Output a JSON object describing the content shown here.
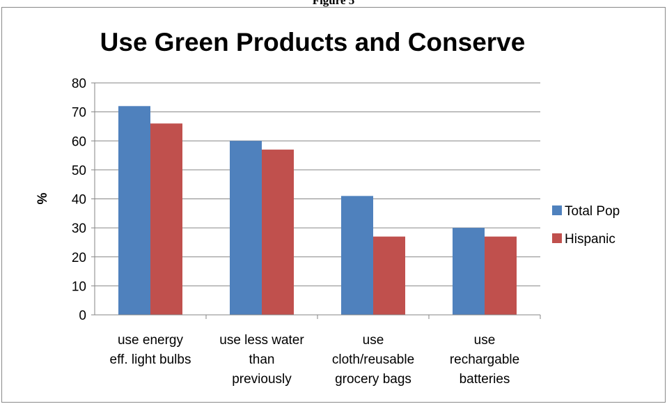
{
  "page": {
    "caption": "Figure 5"
  },
  "chart_data": {
    "type": "bar",
    "title": "Use Green Products and Conserve",
    "xlabel": "",
    "ylabel": "%",
    "ylim": [
      0,
      80
    ],
    "yticks": [
      0,
      10,
      20,
      30,
      40,
      50,
      60,
      70,
      80
    ],
    "grid": true,
    "legend_position": "right",
    "categories": [
      [
        "use energy",
        "eff. light bulbs"
      ],
      [
        "use less water",
        "than",
        "previously"
      ],
      [
        "use",
        "cloth/reusable",
        "grocery bags"
      ],
      [
        "use",
        "rechargable",
        "batteries"
      ]
    ],
    "series": [
      {
        "name": "Total Pop",
        "color": "#4f81bd",
        "values": [
          72,
          60,
          41,
          30
        ]
      },
      {
        "name": "Hispanic",
        "color": "#c0504d",
        "values": [
          66,
          57,
          27,
          27
        ]
      }
    ]
  }
}
